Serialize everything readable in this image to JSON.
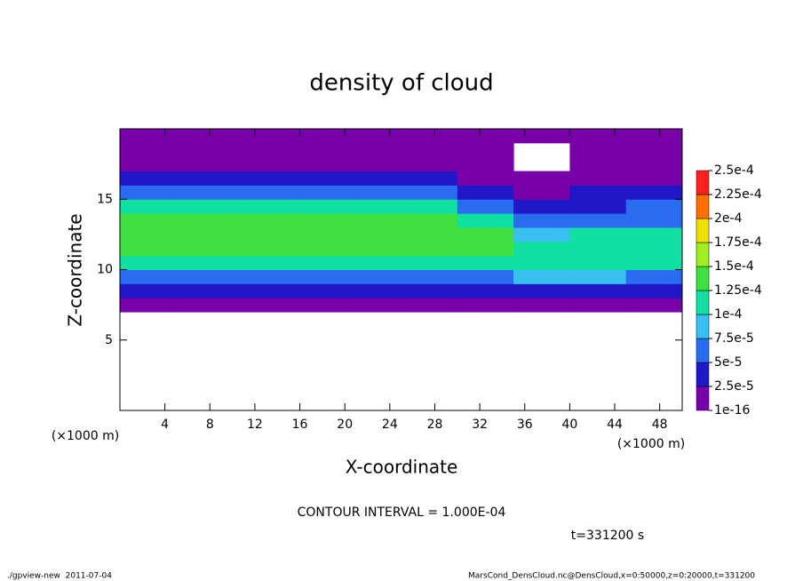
{
  "chart_data": {
    "type": "heatmap",
    "title": "density of cloud",
    "x_label": "X-coordinate",
    "y_label": "Z-coordinate",
    "x_unit": "(×1000 m)",
    "y_unit": "(×1000 m)",
    "xlim": [
      0,
      50
    ],
    "xticks": [
      4,
      8,
      12,
      16,
      20,
      24,
      28,
      32,
      36,
      40,
      44,
      48
    ],
    "ylim": [
      0,
      20
    ],
    "yticks": [
      5,
      10,
      15
    ],
    "xbins": [
      0,
      5,
      10,
      15,
      20,
      25,
      30,
      35,
      40,
      45,
      50
    ],
    "ybins": [
      7,
      8,
      9,
      10,
      11,
      12,
      13,
      14,
      15,
      16,
      17,
      18,
      19,
      20
    ],
    "values": [
      [
        1e-05,
        1e-05,
        1e-05,
        1e-05,
        1e-05,
        1e-05,
        1e-05,
        1e-05,
        1e-05,
        1e-05
      ],
      [
        3e-05,
        3e-05,
        3e-05,
        3e-05,
        3e-05,
        3e-05,
        3e-05,
        3e-05,
        3e-05,
        3e-05
      ],
      [
        6e-05,
        6e-05,
        6e-05,
        6e-05,
        6e-05,
        6e-05,
        6e-05,
        8e-05,
        8e-05,
        6e-05
      ],
      [
        0.000105,
        0.000105,
        0.000105,
        0.000105,
        0.000105,
        0.000105,
        0.000105,
        0.00011,
        0.00011,
        0.000105
      ],
      [
        0.00013,
        0.00013,
        0.00013,
        0.00013,
        0.00013,
        0.00013,
        0.00013,
        0.000115,
        0.000115,
        0.00012
      ],
      [
        0.000135,
        0.000135,
        0.000135,
        0.000135,
        0.000135,
        0.000135,
        0.000135,
        8e-05,
        0.000105,
        0.00011
      ],
      [
        0.000125,
        0.000125,
        0.000125,
        0.000125,
        0.000125,
        0.000125,
        0.00011,
        5e-05,
        6e-05,
        7e-05
      ],
      [
        0.00011,
        0.00011,
        0.00011,
        0.00011,
        0.00011,
        0.00011,
        7e-05,
        3e-05,
        4e-05,
        5e-05
      ],
      [
        5e-05,
        5e-05,
        5e-05,
        5e-05,
        5e-05,
        5e-05,
        4e-05,
        2e-05,
        2.5e-05,
        3e-05
      ],
      [
        3e-05,
        3e-05,
        3e-05,
        3e-05,
        3e-05,
        3e-05,
        2e-05,
        2e-05,
        2e-05,
        2e-05
      ],
      [
        2e-05,
        2e-05,
        1.5e-05,
        2e-05,
        2e-05,
        2e-05,
        2e-05,
        null,
        1e-05,
        1e-05
      ],
      [
        1e-05,
        1e-05,
        1e-05,
        1e-05,
        1e-05,
        1e-05,
        1e-05,
        null,
        1e-05,
        1e-05
      ],
      [
        5e-06,
        5e-06,
        5e-06,
        5e-06,
        5e-06,
        5e-06,
        5e-06,
        5e-06,
        5e-06,
        5e-06
      ]
    ],
    "levels": [
      {
        "value": 1e-16,
        "label": "1e-16"
      },
      {
        "value": 2.5e-05,
        "label": "2.5e-5"
      },
      {
        "value": 5e-05,
        "label": "5e-5"
      },
      {
        "value": 7.5e-05,
        "label": "7.5e-5"
      },
      {
        "value": 0.0001,
        "label": "1e-4"
      },
      {
        "value": 0.000125,
        "label": "1.25e-4"
      },
      {
        "value": 0.00015,
        "label": "1.5e-4"
      },
      {
        "value": 0.000175,
        "label": "1.75e-4"
      },
      {
        "value": 0.0002,
        "label": "2e-4"
      },
      {
        "value": 0.000225,
        "label": "2.25e-4"
      },
      {
        "value": 0.00025,
        "label": "2.5e-4"
      }
    ],
    "colors": [
      "#7800a8",
      "#2018c8",
      "#2a6cf0",
      "#38c0f0",
      "#10e0a0",
      "#40e040",
      "#a0f020",
      "#f0e000",
      "#ff7000",
      "#ff2020"
    ],
    "contour_note": "CONTOUR INTERVAL = 1.000E-04",
    "time_label": "t=331200 s",
    "footer_left": "./gpview-new  2011-07-04",
    "footer_right": "MarsCond_DensCloud.nc@DensCloud,x=0:50000,z=0:20000,t=331200"
  }
}
